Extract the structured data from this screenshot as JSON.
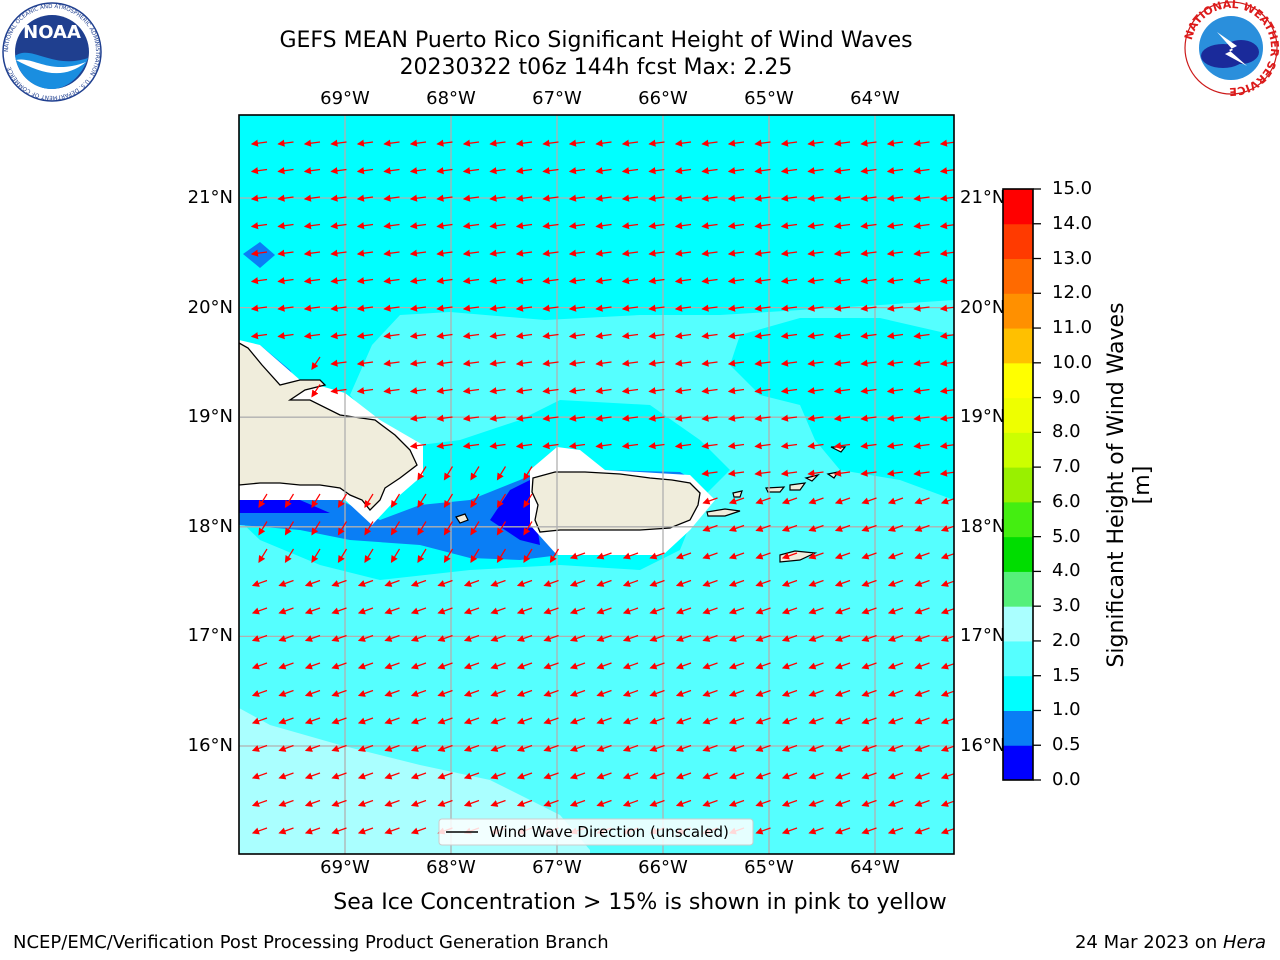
{
  "title": {
    "line1": "GEFS MEAN Puerto Rico Significant Height of Wind Waves",
    "line2": "20230322 t06z 144h fcst   Max: 2.25"
  },
  "map": {
    "lon_labels": [
      "69°W",
      "68°W",
      "67°W",
      "66°W",
      "65°W",
      "64°W"
    ],
    "lat_labels": [
      "21°N",
      "20°N",
      "19°N",
      "18°N",
      "17°N",
      "16°N"
    ],
    "lon_values": [
      -69,
      -68,
      -67,
      -66,
      -65,
      -64
    ],
    "lat_values": [
      21,
      20,
      19,
      18,
      17,
      16
    ],
    "legend_label": "Wind Wave Direction (unscaled)",
    "vector_color": "#ff0000",
    "land_color": "#f0eddc"
  },
  "colorbar": {
    "title": "Significant Height of Wind Waves [m]",
    "levels": [
      "0.0",
      "0.5",
      "1.0",
      "1.5",
      "2.0",
      "3.0",
      "4.0",
      "5.0",
      "6.0",
      "7.0",
      "8.0",
      "9.0",
      "10.0",
      "11.0",
      "12.0",
      "13.0",
      "14.0",
      "15.0"
    ],
    "colors": [
      "#0000ff",
      "#0a7ef5",
      "#00ffff",
      "#55ffff",
      "#aaffff",
      "#55f07a",
      "#00dd00",
      "#44ee11",
      "#99f000",
      "#ccff00",
      "#eeff00",
      "#ffff00",
      "#ffc000",
      "#ff9000",
      "#ff6a00",
      "#ff3a00",
      "#ff0000"
    ]
  },
  "caption": "Sea Ice Concentration > 15% is shown in pink to yellow",
  "footer": {
    "left": "NCEP/EMC/Verification Post Processing Product Generation Branch",
    "right_date": "24 Mar 2023 on ",
    "right_machine": "Hera"
  },
  "logos": {
    "noaa_text": "NOAA",
    "noaa_ring": "NATIONAL OCEANIC AND ATMOSPHERIC ADMINISTRATION · U.S. DEPARTMENT OF COMMERCE",
    "nws_ring": "NATIONAL WEATHER SERVICE"
  }
}
